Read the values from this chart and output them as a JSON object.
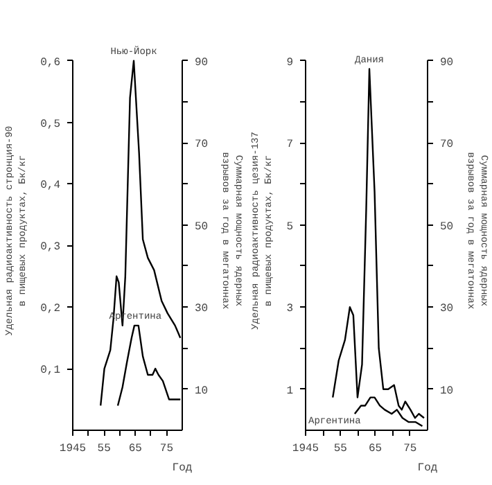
{
  "chart_data": [
    {
      "type": "line",
      "xlabel": "Год",
      "ylabel": "Удельная радиоактивность стронция-90 в пищевых продуктах, Бк/кг",
      "y2label": "Суммарная мощность ядерных взрывов за год в мегатоннах",
      "xlim": [
        1945,
        1980
      ],
      "xticks": [
        1945,
        {
          "value": 1950,
          "label": null
        },
        {
          "value": 1955,
          "label": "55"
        },
        {
          "value": 1960,
          "label": null
        },
        {
          "value": 1965,
          "label": "65"
        },
        {
          "value": 1970,
          "label": null
        },
        {
          "value": 1975,
          "label": "75"
        }
      ],
      "ylim": [
        0,
        0.6
      ],
      "yticks": [
        {
          "value": 0.1,
          "label": "0,1"
        },
        {
          "value": 0.2,
          "label": "0,2"
        },
        {
          "value": 0.3,
          "label": "0,3"
        },
        {
          "value": 0.4,
          "label": "0,4"
        },
        {
          "value": 0.5,
          "label": "0,5"
        },
        {
          "value": 0.6,
          "label": "0,6"
        }
      ],
      "y2lim": [
        0,
        90
      ],
      "y2ticks": [
        10,
        {
          "value": 20,
          "label": null
        },
        30,
        {
          "value": 40,
          "label": null
        },
        50,
        {
          "value": 60,
          "label": null
        },
        70,
        {
          "value": 80,
          "label": null
        },
        90
      ],
      "line_style": "solid",
      "marker": "none",
      "series": [
        {
          "color": "#000000",
          "x": [
            1953.9,
            1955.1,
            1957,
            1958,
            1959,
            1959.7,
            1960.9,
            1961.8,
            1963.3,
            1964.5,
            1966.2,
            1967.4,
            1969,
            1971,
            1973.4,
            1975.3,
            1977.7,
            1979.4
          ],
          "values": [
            0.04,
            0.1,
            0.13,
            0.18,
            0.25,
            0.24,
            0.17,
            0.25,
            0.54,
            0.6,
            0.45,
            0.31,
            0.28,
            0.26,
            0.21,
            0.19,
            0.17,
            0.15
          ]
        },
        {
          "color": "#000000",
          "x": [
            1959.4,
            1960.9,
            1962.3,
            1963.8,
            1964.7,
            1966,
            1967.4,
            1969,
            1970.5,
            1971.4,
            1972.4,
            1973.8,
            1975.8,
            1977.7,
            1979.4
          ],
          "values": [
            0.04,
            0.07,
            0.11,
            0.15,
            0.17,
            0.17,
            0.12,
            0.09,
            0.09,
            0.1,
            0.09,
            0.08,
            0.05,
            0.05,
            0.05
          ]
        }
      ],
      "annotations": [
        {
          "text": "Нью-Йорк",
          "x": 1964.5,
          "y": 0.6
        },
        {
          "text": "Аргентина",
          "x": 1965,
          "y": 0.17
        }
      ]
    },
    {
      "type": "line",
      "xlabel": "Год",
      "ylabel": "Удельная радиоактивность цезия-137 в пищевых продуктах, Бк/кг",
      "y2label": "Суммарная мощность ядерных взрывов за год в мегатоннах",
      "xlim": [
        1945,
        1980
      ],
      "xticks": [
        1945,
        {
          "value": 1950,
          "label": null
        },
        {
          "value": 1955,
          "label": "55"
        },
        {
          "value": 1960,
          "label": null
        },
        {
          "value": 1965,
          "label": "65"
        },
        {
          "value": 1970,
          "label": null
        },
        {
          "value": 1975,
          "label": "75"
        }
      ],
      "ylim": [
        0,
        9
      ],
      "yticks": [
        1,
        {
          "value": 2,
          "label": null
        },
        3,
        {
          "value": 4,
          "label": null
        },
        5,
        {
          "value": 6,
          "label": null
        },
        7,
        {
          "value": 8,
          "label": null
        },
        9
      ],
      "y2lim": [
        0,
        90
      ],
      "y2ticks": [
        10,
        {
          "value": 20,
          "label": null
        },
        30,
        {
          "value": 40,
          "label": null
        },
        50,
        {
          "value": 60,
          "label": null
        },
        70,
        {
          "value": 80,
          "label": null
        },
        90
      ],
      "line_style": "solid",
      "marker": "none",
      "series": [
        {
          "color": "#000000",
          "x": [
            1952.8,
            1954.5,
            1956.3,
            1957.7,
            1958.7,
            1959.9,
            1961.2,
            1962.4,
            1963.3,
            1964.8,
            1966,
            1967.3,
            1968.7,
            1970.4,
            1971.7,
            1972.6,
            1973.6,
            1975.1,
            1976.4,
            1977.5,
            1979
          ],
          "values": [
            0.8,
            1.7,
            2.2,
            3,
            2.8,
            0.8,
            1.6,
            5.4,
            8.8,
            5.8,
            2,
            1,
            1,
            1.1,
            0.6,
            0.5,
            0.7,
            0.5,
            0.3,
            0.4,
            0.3
          ]
        },
        {
          "color": "#000000",
          "x": [
            1959.1,
            1960.9,
            1962.1,
            1963.6,
            1964.8,
            1966.3,
            1967.7,
            1969.7,
            1971.2,
            1972.8,
            1974.6,
            1976.6,
            1978.5
          ],
          "values": [
            0.4,
            0.6,
            0.6,
            0.8,
            0.8,
            0.6,
            0.5,
            0.4,
            0.5,
            0.3,
            0.2,
            0.2,
            0.1
          ]
        }
      ],
      "annotations": [
        {
          "text": "Дания",
          "x": 1963.3,
          "y": 8.8
        },
        "Аргентина"
      ]
    }
  ]
}
